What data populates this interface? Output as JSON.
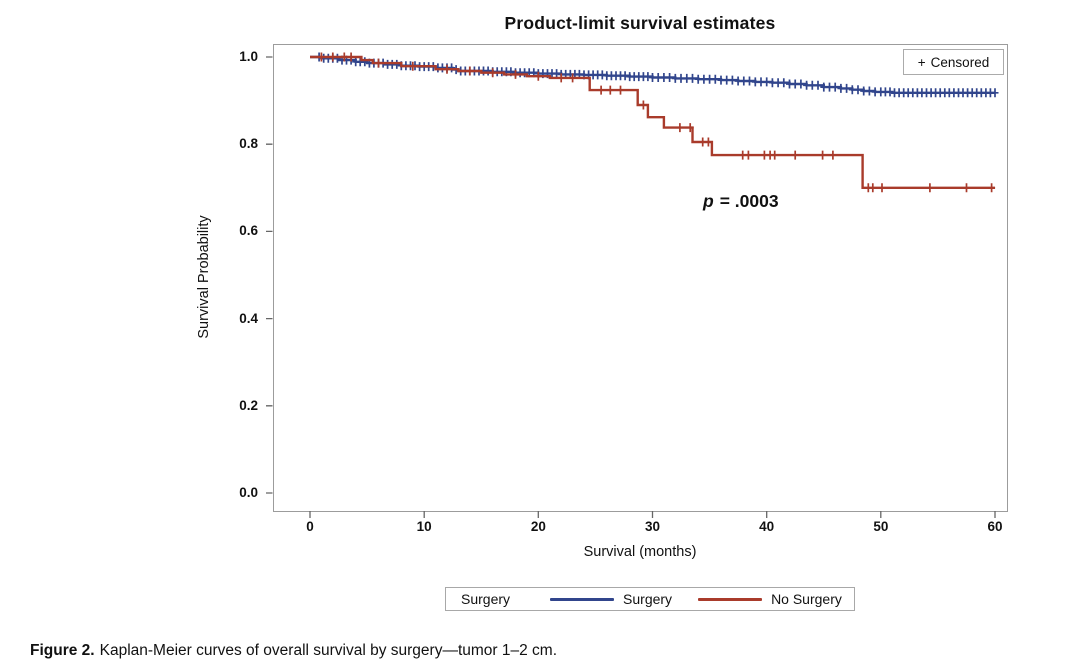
{
  "figure": {
    "censored_symbol": "+",
    "censored_label": "Censored",
    "p_symbol": "p",
    "p_value": "= .0003",
    "legend_group_label": "Surgery",
    "caption_bold": "Figure 2.",
    "caption_text": "Kaplan-Meier curves of overall survival by surgery—tumor 1–2 cm.",
    "frame_color": "#9c9c9c",
    "tick_color": "#666666"
  },
  "chart_data": {
    "type": "line",
    "subtype": "kaplan-meier-step",
    "title": "Product-limit survival estimates",
    "xlabel": "Survival (months)",
    "ylabel": "Survival Probability",
    "xlim": [
      0,
      60
    ],
    "ylim": [
      0.0,
      1.0
    ],
    "x_ticks": [
      0,
      10,
      20,
      30,
      40,
      50,
      60
    ],
    "y_ticks": [
      0.0,
      0.2,
      0.4,
      0.6,
      0.8,
      1.0
    ],
    "grid": false,
    "legend_position": "bottom",
    "annotation": "p = .0003",
    "censored_marker": "+",
    "series": [
      {
        "name": "Surgery",
        "color": "#31458c",
        "steps": [
          [
            0,
            1.0
          ],
          [
            1,
            0.997
          ],
          [
            2.5,
            0.993
          ],
          [
            4,
            0.989
          ],
          [
            5,
            0.986
          ],
          [
            6.5,
            0.983
          ],
          [
            8,
            0.98
          ],
          [
            9.5,
            0.978
          ],
          [
            11,
            0.975
          ],
          [
            12.5,
            0.971
          ],
          [
            13,
            0.968
          ],
          [
            16,
            0.966
          ],
          [
            18,
            0.964
          ],
          [
            20,
            0.962
          ],
          [
            22,
            0.96
          ],
          [
            24,
            0.959
          ],
          [
            26,
            0.957
          ],
          [
            28,
            0.955
          ],
          [
            30,
            0.953
          ],
          [
            32,
            0.951
          ],
          [
            34,
            0.949
          ],
          [
            36,
            0.947
          ],
          [
            37.5,
            0.945
          ],
          [
            39,
            0.943
          ],
          [
            40.5,
            0.941
          ],
          [
            42,
            0.938
          ],
          [
            43.5,
            0.935
          ],
          [
            45,
            0.931
          ],
          [
            46.5,
            0.928
          ],
          [
            47.5,
            0.925
          ],
          [
            48.5,
            0.922
          ],
          [
            49.5,
            0.92
          ],
          [
            51,
            0.918
          ]
        ],
        "censor_times": [
          0.8,
          1.2,
          1.6,
          2.0,
          2.4,
          2.8,
          3.2,
          3.6,
          4.0,
          4.4,
          4.8,
          5.2,
          5.6,
          6.0,
          6.4,
          6.8,
          7.2,
          7.6,
          8.0,
          8.4,
          8.8,
          9.2,
          9.6,
          10.0,
          10.4,
          10.8,
          11.2,
          11.6,
          12.0,
          12.4,
          12.8,
          13.2,
          13.6,
          14.0,
          14.4,
          14.8,
          15.2,
          15.6,
          16.0,
          16.4,
          16.8,
          17.2,
          17.6,
          18.0,
          18.4,
          18.8,
          19.2,
          19.6,
          20.0,
          20.4,
          20.8,
          21.2,
          21.6,
          22.0,
          22.4,
          22.8,
          23.2,
          23.6,
          24.0,
          24.4,
          24.8,
          25.2,
          25.6,
          26.0,
          26.4,
          26.8,
          27.2,
          27.6,
          28.0,
          28.4,
          28.8,
          29.2,
          29.6,
          30.0,
          30.5,
          31.0,
          31.5,
          32.0,
          32.5,
          33.0,
          33.5,
          34.0,
          34.5,
          35.0,
          35.5,
          36.0,
          36.5,
          37.0,
          37.5,
          38.0,
          38.5,
          39.0,
          39.5,
          40.0,
          40.5,
          41.0,
          41.5,
          42.0,
          42.5,
          43.0,
          43.5,
          44.0,
          44.5,
          45.0,
          45.5,
          46.0,
          46.5,
          47.0,
          47.5,
          48.0,
          48.5,
          49.0,
          49.5,
          50.0,
          50.4,
          50.8,
          51.2,
          51.6,
          52.0,
          52.4,
          52.8,
          53.2,
          53.6,
          54.0,
          54.4,
          54.8,
          55.2,
          55.6,
          56.0,
          56.4,
          56.8,
          57.2,
          57.6,
          58.0,
          58.4,
          58.8,
          59.2,
          59.6,
          60.0
        ]
      },
      {
        "name": "No Surgery",
        "color": "#a93b2b",
        "steps": [
          [
            0,
            1.0
          ],
          [
            4.5,
            0.993
          ],
          [
            5.5,
            0.986
          ],
          [
            8,
            0.979
          ],
          [
            11,
            0.972
          ],
          [
            13,
            0.968
          ],
          [
            15,
            0.964
          ],
          [
            17,
            0.96
          ],
          [
            19,
            0.956
          ],
          [
            21,
            0.952
          ],
          [
            24.5,
            0.924
          ],
          [
            28.7,
            0.89
          ],
          [
            29.6,
            0.862
          ],
          [
            31,
            0.838
          ],
          [
            33.5,
            0.805
          ],
          [
            35.2,
            0.775
          ],
          [
            48.4,
            0.7
          ]
        ],
        "censor_times": [
          1.0,
          2.0,
          3.0,
          3.6,
          6.0,
          9.0,
          12.0,
          14.0,
          16.0,
          18.0,
          20.0,
          22.0,
          23.0,
          25.5,
          26.3,
          27.2,
          29.2,
          32.4,
          33.3,
          34.4,
          34.9,
          37.9,
          38.4,
          39.8,
          40.3,
          40.7,
          42.5,
          44.9,
          45.8,
          48.9,
          49.3,
          50.1,
          54.3,
          57.5,
          59.7
        ]
      }
    ]
  }
}
